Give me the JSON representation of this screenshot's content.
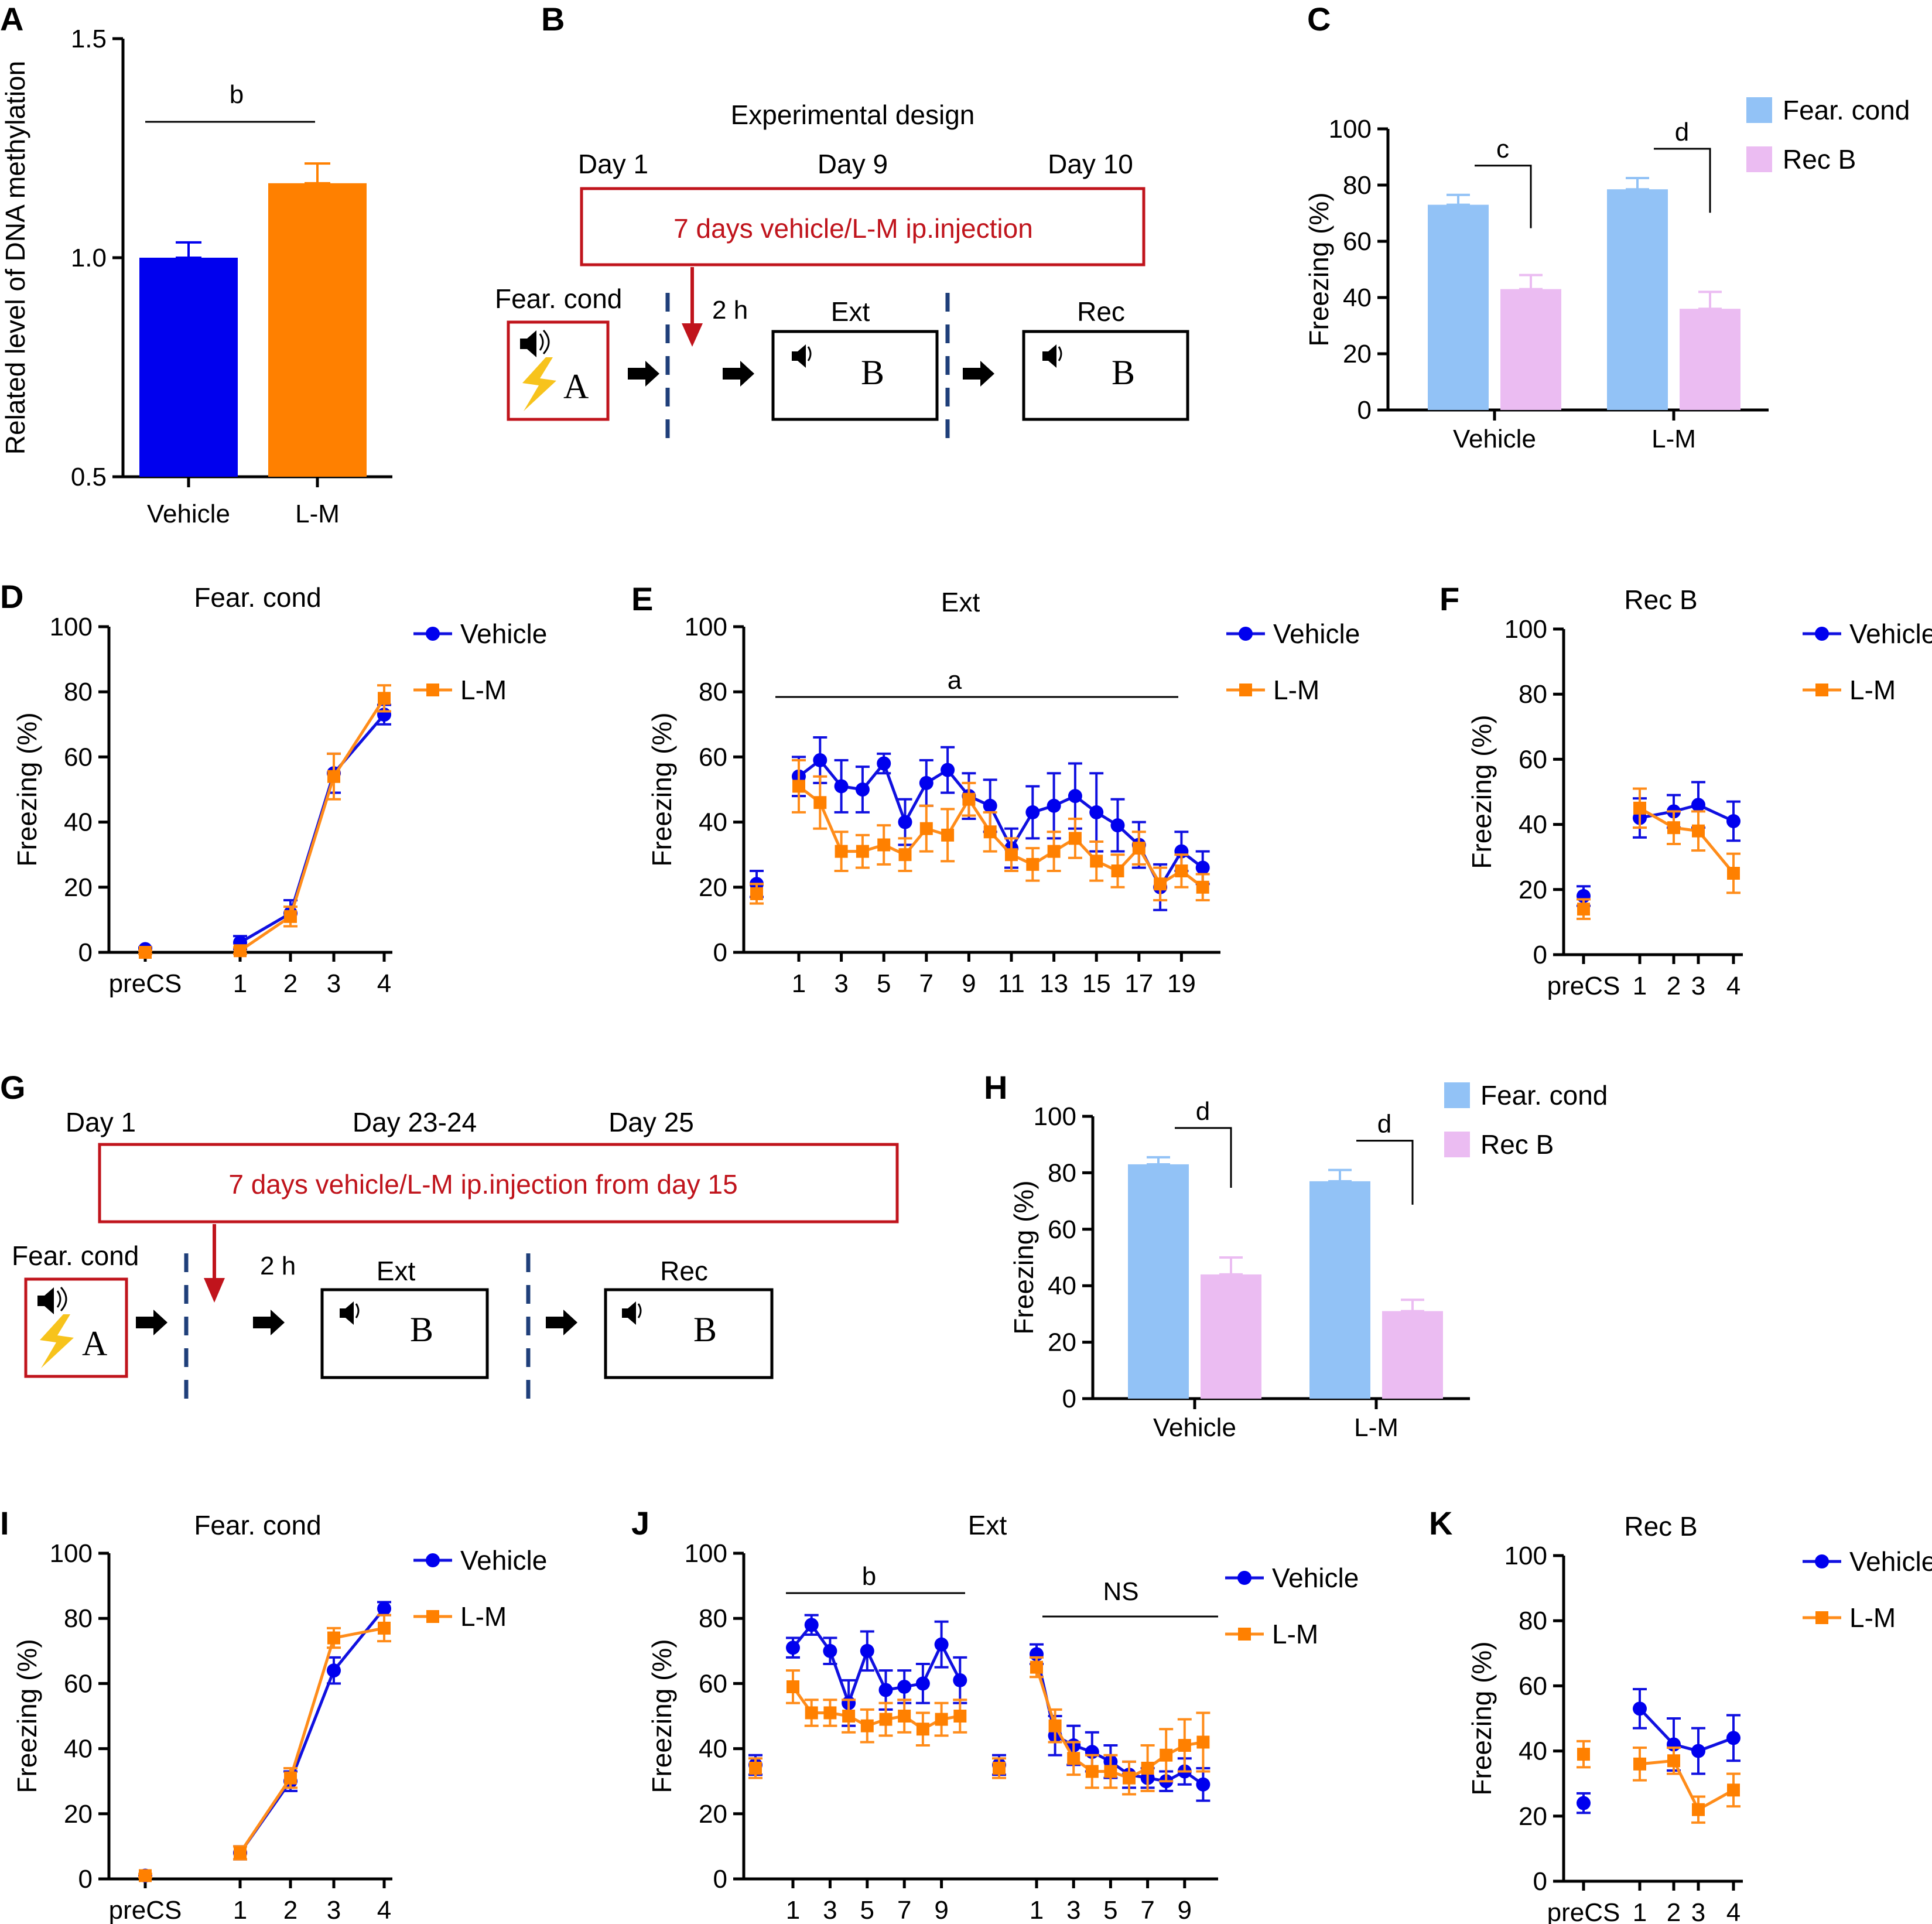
{
  "colors": {
    "vehicle_dark": "#0000ee",
    "lm_dark": "#ff8000",
    "vehicle_line": "#1010e0",
    "lm_line": "#ff8c1a",
    "fear_bar": "#92c2f6",
    "rec_bar": "#ebbcf2",
    "frame_red": "#c0141c",
    "dash_blue": "#1f3f7a"
  },
  "panels": {
    "A": {
      "label": "A"
    },
    "B": {
      "label": "B",
      "title": "Experimental design",
      "days": [
        "Day 1",
        "Day 9",
        "Day 10"
      ],
      "injection": "7 days vehicle/L-M ip.injection",
      "fear_label": "Fear. cond",
      "delay": "2 h",
      "ext_label": "Ext",
      "rec_label": "Rec",
      "context_a": "A",
      "context_b1": "B",
      "context_b2": "B"
    },
    "C": {
      "label": "C"
    },
    "D": {
      "label": "D"
    },
    "E": {
      "label": "E"
    },
    "F": {
      "label": "F"
    },
    "G": {
      "label": "G",
      "days": [
        "Day 1",
        "Day 23-24",
        "Day 25"
      ],
      "injection": "7 days vehicle/L-M ip.injection from day 15",
      "fear_label": "Fear. cond",
      "delay": "2 h",
      "ext_label": "Ext",
      "rec_label": "Rec",
      "context_a": "A",
      "context_b1": "B",
      "context_b2": "B"
    },
    "H": {
      "label": "H"
    },
    "I": {
      "label": "I"
    },
    "J": {
      "label": "J"
    },
    "K": {
      "label": "K"
    }
  },
  "chart_data": [
    {
      "panel": "A",
      "type": "bar",
      "categories": [
        "Vehicle",
        "L-M"
      ],
      "values": [
        1.0,
        1.17
      ],
      "errors": [
        0.035,
        0.045
      ],
      "bar_colors": [
        "#0000ee",
        "#ff8000"
      ],
      "ylabel": "Related level of DNA methylation",
      "ylim": [
        0.5,
        1.5
      ],
      "yticks": [
        "0.5",
        "1.0",
        "1.5"
      ],
      "annotations": [
        {
          "text": "b",
          "between": [
            "Vehicle",
            "L-M"
          ]
        }
      ]
    },
    {
      "panel": "C",
      "type": "bar",
      "categories": [
        "Vehicle",
        "L-M"
      ],
      "series": [
        {
          "name": "Fear. cond",
          "values": [
            73,
            78.5
          ],
          "errors": [
            3.5,
            4
          ]
        },
        {
          "name": "Rec B",
          "values": [
            43,
            36
          ],
          "errors": [
            5,
            6
          ]
        }
      ],
      "ylabel": "Freezing (%)",
      "ylim": [
        0,
        100
      ],
      "yticks": [
        "0",
        "20",
        "40",
        "60",
        "80",
        "100"
      ],
      "annotations": [
        {
          "text": "c",
          "group": "Vehicle"
        },
        {
          "text": "d",
          "group": "L-M"
        }
      ]
    },
    {
      "panel": "D",
      "type": "line",
      "title": "Fear. cond",
      "ylabel": "Freezing (%)",
      "ylim": [
        0,
        100
      ],
      "yticks": [
        "0",
        "20",
        "40",
        "60",
        "80",
        "100"
      ],
      "xticks": [
        "preCS",
        "1",
        "2",
        "3",
        "4"
      ],
      "series": [
        {
          "name": "Vehicle",
          "x": [
            0,
            1,
            2,
            3,
            4
          ],
          "values": [
            1,
            3,
            12,
            55,
            73
          ],
          "errors": [
            0.5,
            2,
            4,
            6,
            3
          ]
        },
        {
          "name": "L-M",
          "x": [
            0,
            1,
            2,
            3,
            4
          ],
          "values": [
            0,
            0.5,
            11,
            54,
            78
          ],
          "errors": [
            0.5,
            1,
            3,
            7,
            4
          ]
        }
      ]
    },
    {
      "panel": "E",
      "type": "line",
      "title": "Ext",
      "ylabel": "Freezing (%)",
      "ylim": [
        0,
        100
      ],
      "yticks": [
        "0",
        "20",
        "40",
        "60",
        "80",
        "100"
      ],
      "xticks": [
        "1",
        "3",
        "5",
        "7",
        "9",
        "11",
        "13",
        "15",
        "17",
        "19"
      ],
      "annotations": [
        {
          "text": "a",
          "from": 1,
          "to": 19
        }
      ],
      "series": [
        {
          "name": "Vehicle",
          "x": [
            -1,
            1,
            2,
            3,
            4,
            5,
            6,
            7,
            8,
            9,
            10,
            11,
            12,
            13,
            14,
            15,
            16,
            17,
            18,
            19,
            20
          ],
          "values": [
            21,
            54,
            59,
            51,
            50,
            58,
            40,
            52,
            56,
            48,
            45,
            32,
            43,
            45,
            48,
            43,
            39,
            33,
            20,
            31,
            26
          ],
          "errors": [
            4,
            6,
            7,
            8,
            7,
            3,
            7,
            7,
            7,
            7,
            8,
            6,
            8,
            10,
            10,
            12,
            8,
            7,
            7,
            6,
            5
          ]
        },
        {
          "name": "L-M",
          "x": [
            -1,
            1,
            2,
            3,
            4,
            5,
            6,
            7,
            8,
            9,
            10,
            11,
            12,
            13,
            14,
            15,
            16,
            17,
            18,
            19,
            20
          ],
          "values": [
            18,
            51,
            46,
            31,
            31,
            33,
            30,
            38,
            36,
            47,
            37,
            30,
            27,
            31,
            35,
            28,
            25,
            32,
            21,
            25,
            20
          ],
          "errors": [
            3,
            8,
            8,
            6,
            5,
            6,
            5,
            7,
            8,
            5,
            6,
            5,
            5,
            6,
            6,
            6,
            5,
            5,
            5,
            5,
            4
          ]
        }
      ]
    },
    {
      "panel": "F",
      "type": "line",
      "title": "Rec B",
      "ylabel": "Freezing (%)",
      "ylim": [
        0,
        100
      ],
      "yticks": [
        "0",
        "20",
        "40",
        "60",
        "80",
        "100"
      ],
      "xticks": [
        "preCS",
        "1",
        "2",
        "3",
        "4"
      ],
      "series": [
        {
          "name": "Vehicle",
          "x": [
            0,
            1,
            2,
            3,
            4
          ],
          "values": [
            18,
            42,
            44,
            46,
            41
          ],
          "errors": [
            3,
            6,
            5,
            7,
            6
          ]
        },
        {
          "name": "L-M",
          "x": [
            0,
            1,
            2,
            3,
            4
          ],
          "values": [
            14,
            45,
            39,
            38,
            25
          ],
          "errors": [
            3,
            6,
            5,
            6,
            6
          ]
        }
      ]
    },
    {
      "panel": "H",
      "type": "bar",
      "categories": [
        "Vehicle",
        "L-M"
      ],
      "series": [
        {
          "name": "Fear. cond",
          "values": [
            83,
            77
          ],
          "errors": [
            2.5,
            4
          ]
        },
        {
          "name": "Rec B",
          "values": [
            44,
            31
          ],
          "errors": [
            6,
            4
          ]
        }
      ],
      "ylabel": "Freezing (%)",
      "ylim": [
        0,
        100
      ],
      "yticks": [
        "0",
        "20",
        "40",
        "60",
        "80",
        "100"
      ],
      "annotations": [
        {
          "text": "d",
          "group": "Vehicle"
        },
        {
          "text": "d",
          "group": "L-M"
        }
      ]
    },
    {
      "panel": "I",
      "type": "line",
      "title": "Fear. cond",
      "ylabel": "Freezing (%)",
      "ylim": [
        0,
        100
      ],
      "yticks": [
        "0",
        "20",
        "40",
        "60",
        "80",
        "100"
      ],
      "xticks": [
        "preCS",
        "1",
        "2",
        "3",
        "4"
      ],
      "series": [
        {
          "name": "Vehicle",
          "x": [
            0,
            1,
            2,
            3,
            4
          ],
          "values": [
            1,
            8,
            30,
            64,
            83
          ],
          "errors": [
            0.5,
            2,
            3,
            4,
            2
          ]
        },
        {
          "name": "L-M",
          "x": [
            0,
            1,
            2,
            3,
            4
          ],
          "values": [
            1,
            8,
            31,
            74,
            77
          ],
          "errors": [
            0.5,
            2,
            3,
            3,
            4
          ]
        }
      ]
    },
    {
      "panel": "J",
      "type": "line",
      "title": "Ext",
      "ylabel": "Freezing (%)",
      "ylim": [
        0,
        100
      ],
      "yticks": [
        "0",
        "20",
        "40",
        "60",
        "80",
        "100"
      ],
      "xticks": [
        "1",
        "3",
        "5",
        "7",
        "9",
        "1",
        "3",
        "5",
        "7",
        "9"
      ],
      "annotations": [
        {
          "text": "b",
          "block": 1
        },
        {
          "text": "NS",
          "block": 2
        }
      ],
      "series": [
        {
          "name": "Vehicle",
          "blocks": [
            {
              "x": [
                0,
                1,
                2,
                3,
                4,
                5,
                6,
                7,
                8,
                9,
                10
              ],
              "values": [
                35,
                71,
                78,
                70,
                54,
                70,
                58,
                59,
                60,
                72,
                61
              ],
              "errors": [
                3,
                3,
                3,
                4,
                7,
                6,
                6,
                5,
                6,
                7,
                7
              ]
            },
            {
              "x": [
                0,
                1,
                2,
                3,
                4,
                5,
                6,
                7,
                8,
                9,
                10
              ],
              "values": [
                35,
                69,
                44,
                41,
                39,
                36,
                32,
                31,
                30,
                33,
                29
              ],
              "errors": [
                3,
                3,
                6,
                6,
                6,
                5,
                4,
                3,
                3,
                4,
                5
              ]
            }
          ]
        },
        {
          "name": "L-M",
          "blocks": [
            {
              "x": [
                0,
                1,
                2,
                3,
                4,
                5,
                6,
                7,
                8,
                9,
                10
              ],
              "values": [
                34,
                59,
                51,
                51,
                50,
                47,
                49,
                50,
                46,
                49,
                50
              ],
              "errors": [
                3,
                5,
                4,
                4,
                5,
                5,
                5,
                5,
                5,
                5,
                5
              ]
            },
            {
              "x": [
                0,
                1,
                2,
                3,
                4,
                5,
                6,
                7,
                8,
                9,
                10
              ],
              "values": [
                34,
                65,
                47,
                37,
                33,
                33,
                31,
                34,
                38,
                41,
                42
              ],
              "errors": [
                3,
                3,
                5,
                5,
                5,
                5,
                5,
                7,
                8,
                8,
                9
              ]
            }
          ]
        }
      ]
    },
    {
      "panel": "K",
      "type": "line",
      "title": "Rec B",
      "ylabel": "Freezing (%)",
      "ylim": [
        0,
        100
      ],
      "yticks": [
        "0",
        "20",
        "40",
        "60",
        "80",
        "100"
      ],
      "xticks": [
        "preCS",
        "1",
        "2",
        "3",
        "4"
      ],
      "series": [
        {
          "name": "Vehicle",
          "x": [
            0,
            1,
            2,
            3,
            4
          ],
          "values": [
            24,
            53,
            42,
            40,
            44
          ],
          "errors": [
            3,
            6,
            8,
            7,
            7
          ]
        },
        {
          "name": "L-M",
          "x": [
            0,
            1,
            2,
            3,
            4
          ],
          "values": [
            39,
            36,
            37,
            22,
            28
          ],
          "errors": [
            4,
            5,
            4,
            4,
            5
          ]
        }
      ]
    }
  ]
}
